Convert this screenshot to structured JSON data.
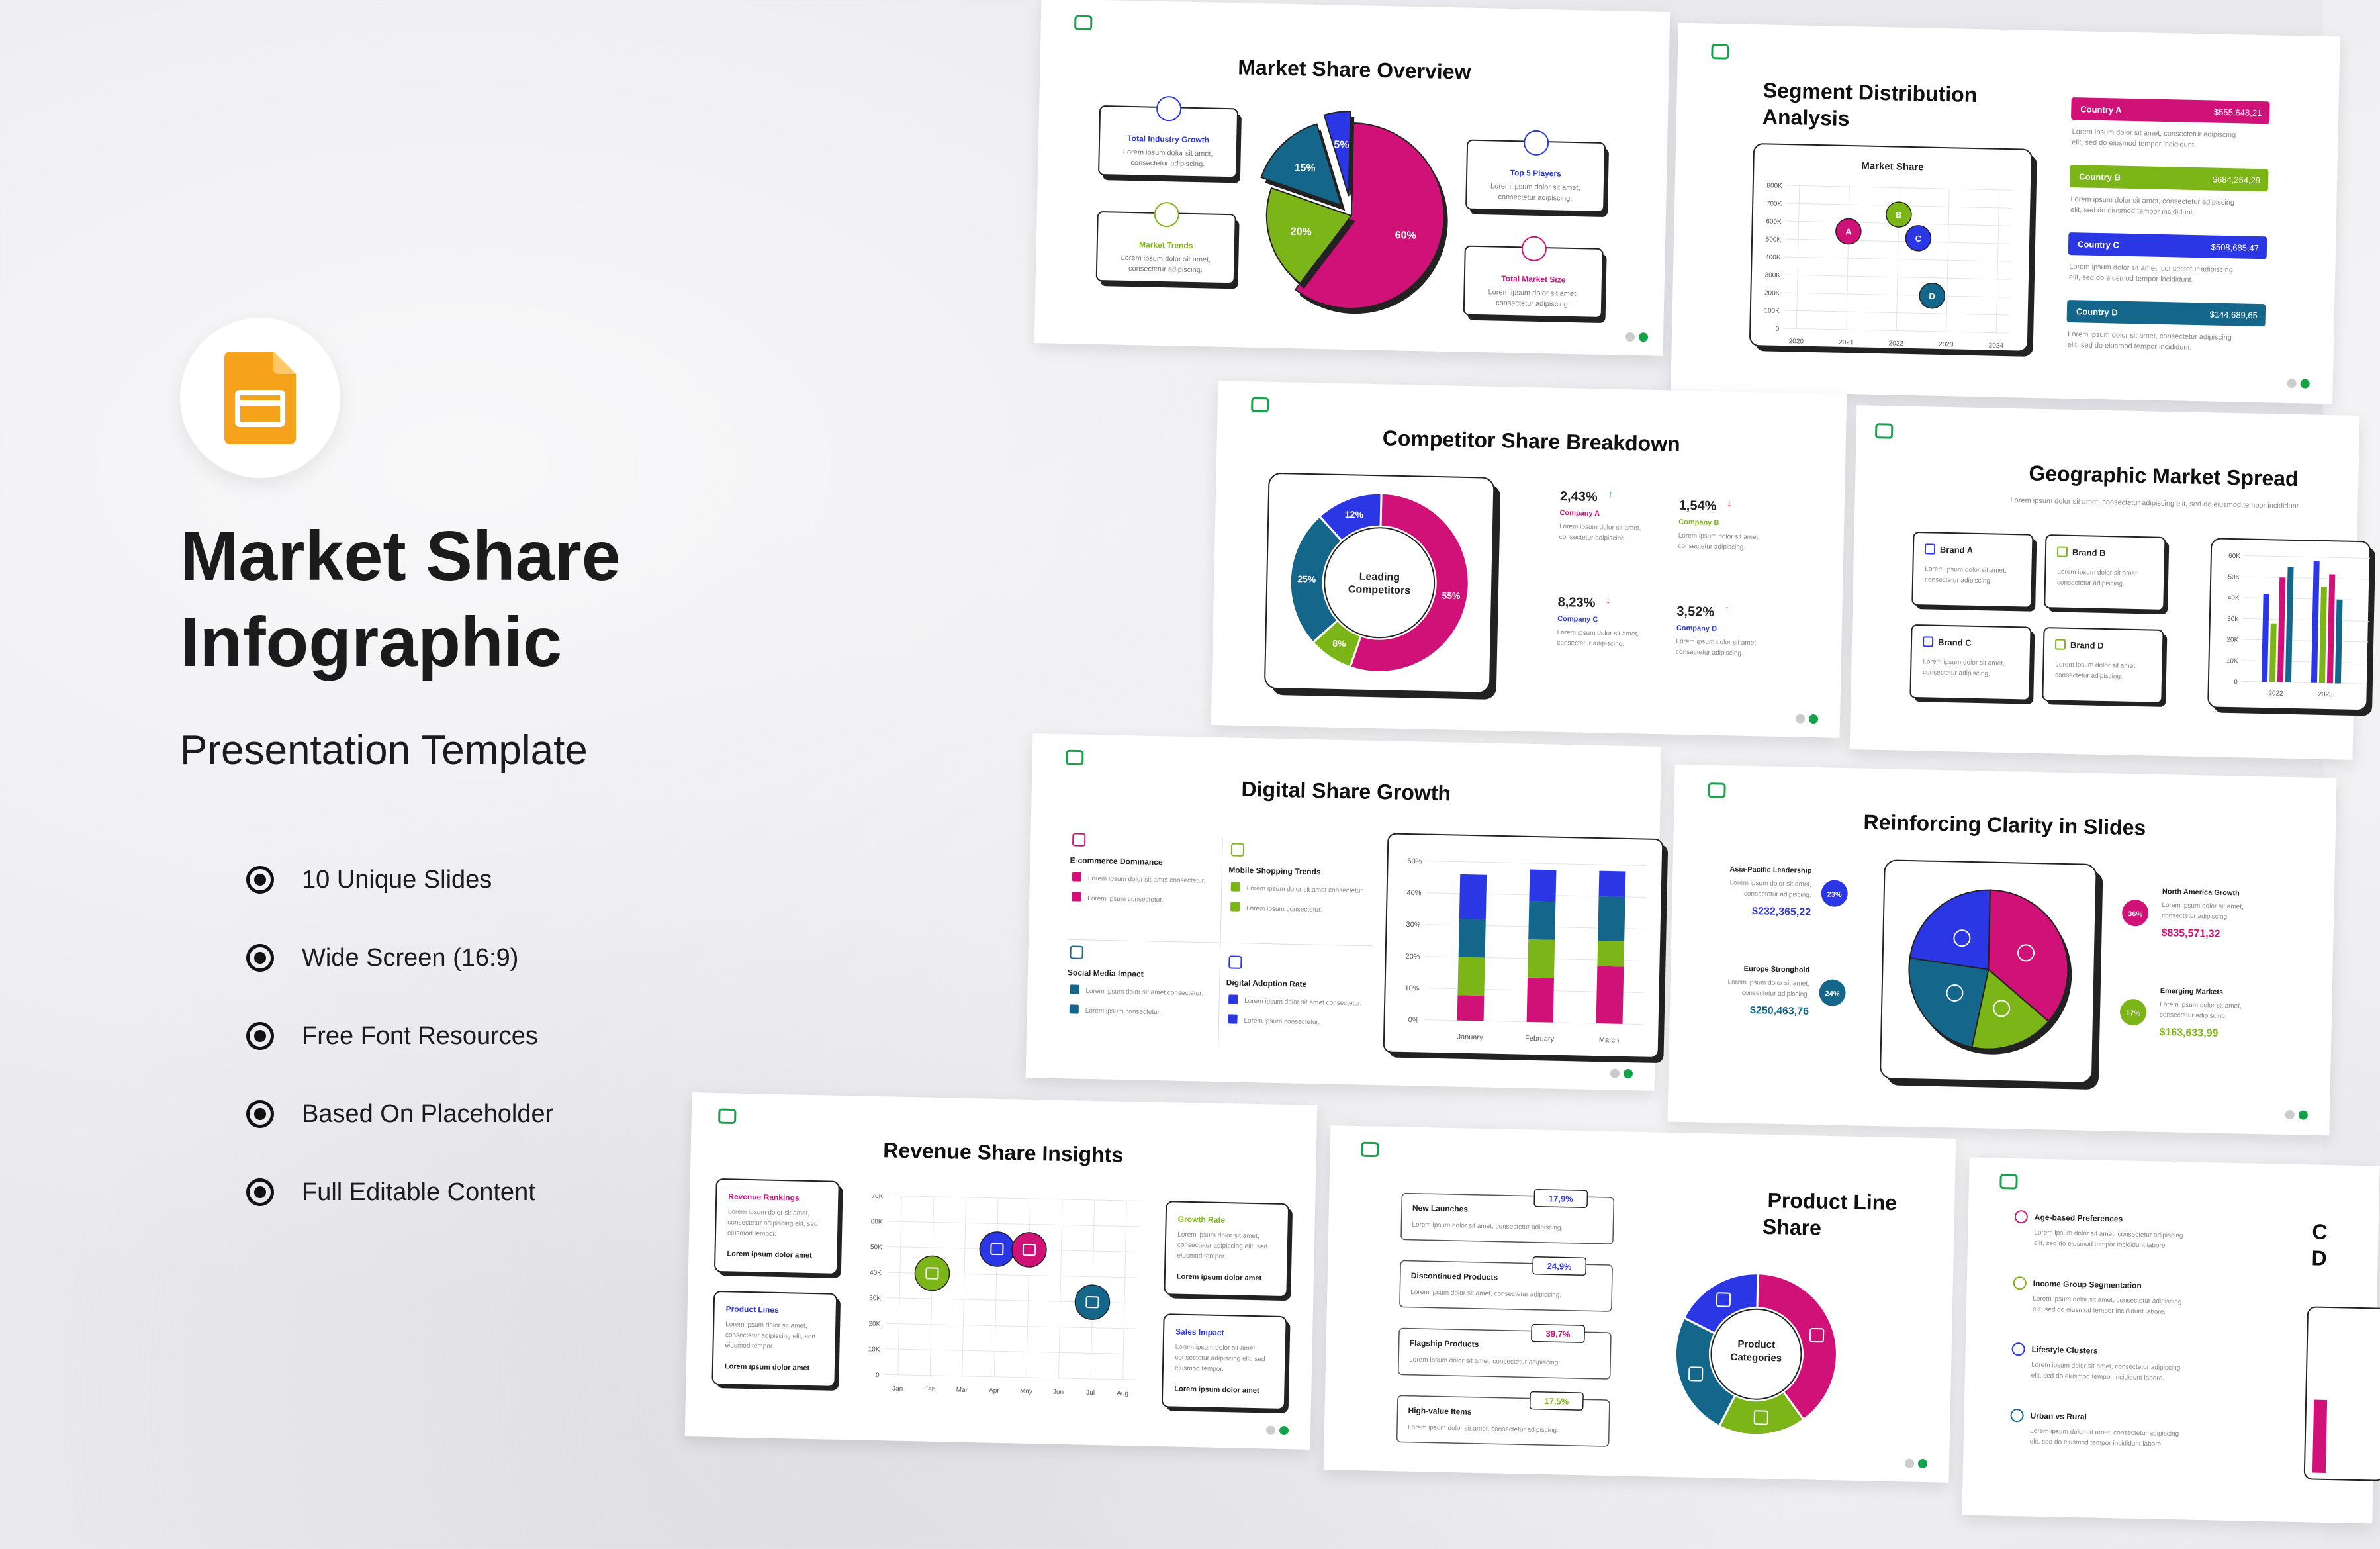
{
  "left_panel": {
    "title_line1": "Market Share",
    "title_line2": "Infographic",
    "subtitle": "Presentation Template",
    "features": [
      "10 Unique Slides",
      "Wide Screen (16:9)",
      "Free Font Resources",
      "Based On Placeholder",
      "Full Editable Content"
    ],
    "icon": "google-slides-icon",
    "icon_color": "#f7a21b"
  },
  "colors": {
    "magenta": "#d01177",
    "green": "#7cb518",
    "blue": "#2b36e4",
    "teal": "#15668b"
  },
  "lorem": {
    "short": "Lorem ipsum dolor sit amet,",
    "short2": "consectetur adipiscing.",
    "long1": "Lorem ipsum dolor sit amet, consectetur adipiscing",
    "long2": "elit, sed do eiusmod tempor incididunt.",
    "tiny": "Lorem ipsum consectetur."
  },
  "slide1": {
    "title": "Market Share Overview",
    "cards": [
      "Total Industry Growth",
      "Market Trends",
      "Top 5 Players",
      "Total Market Size"
    ],
    "slices": [
      {
        "label": "60%",
        "value": 60
      },
      {
        "label": "20%",
        "value": 20
      },
      {
        "label": "15%",
        "value": 15
      },
      {
        "label": "5%",
        "value": 5
      }
    ]
  },
  "slide2": {
    "title_line1": "Segment Distribution",
    "title_line2": "Analysis",
    "chart_title": "Market Share",
    "y_ticks": [
      "800K",
      "700K",
      "600K",
      "500K",
      "400K",
      "300K",
      "200K",
      "100K",
      "0"
    ],
    "x_ticks": [
      "2020",
      "2021",
      "2022",
      "2023",
      "2024"
    ],
    "bubbles": [
      {
        "label": "A",
        "year": 2021,
        "value": 550
      },
      {
        "label": "B",
        "year": 2022,
        "value": 650
      },
      {
        "label": "C",
        "year": 2022.4,
        "value": 520
      },
      {
        "label": "D",
        "year": 2022.7,
        "value": 200
      }
    ],
    "countries": [
      {
        "name": "Country A",
        "value": "$555,648,21"
      },
      {
        "name": "Country B",
        "value": "$684,254,29"
      },
      {
        "name": "Country C",
        "value": "$508,685,47"
      },
      {
        "name": "Country D",
        "value": "$144,689,65"
      }
    ]
  },
  "slide3": {
    "title": "Competitor Share Breakdown",
    "center_line1": "Leading",
    "center_line2": "Competitors",
    "slices": [
      {
        "label": "55%",
        "value": 55
      },
      {
        "label": "8%",
        "value": 8
      },
      {
        "label": "25%",
        "value": 25
      },
      {
        "label": "12%",
        "value": 12
      }
    ],
    "stats": [
      {
        "value": "2,43%",
        "company": "Company A",
        "trend": "up"
      },
      {
        "value": "1,54%",
        "company": "Company B",
        "trend": "down"
      },
      {
        "value": "8,23%",
        "company": "Company C",
        "trend": "down"
      },
      {
        "value": "3,52%",
        "company": "Company D",
        "trend": "up"
      }
    ]
  },
  "slide4": {
    "title": "Geographic Market Spread",
    "desc": "Lorem ipsum dolor sit amet, consectetur adipiscing elit, sed do eiusmod tempor incididunt",
    "brands": [
      "Brand A",
      "Brand B",
      "Brand C",
      "Brand D"
    ],
    "y_ticks": [
      "60K",
      "50K",
      "40K",
      "30K",
      "20K",
      "10K",
      "0"
    ],
    "x_ticks": [
      "2022",
      "2023"
    ]
  },
  "slide5": {
    "title": "Digital Share Growth",
    "blocks": [
      "E-commerce Dominance",
      "Mobile Shopping Trends",
      "Social Media Impact",
      "Digital Adoption Rate"
    ],
    "y_ticks": [
      "50%",
      "40%",
      "30%",
      "20%",
      "10%",
      "0%"
    ],
    "months": [
      "January",
      "February",
      "March"
    ]
  },
  "slide6": {
    "title": "Reinforcing Clarity in Slides",
    "regions": [
      {
        "name": "Asia-Pacific Leadership",
        "value": "$232,365,22",
        "pct": "23%"
      },
      {
        "name": "Europe Stronghold",
        "value": "$250,463,76",
        "pct": "24%"
      },
      {
        "name": "North America Growth",
        "value": "$835,571,32",
        "pct": "36%"
      },
      {
        "name": "Emerging Markets",
        "value": "$163,633,99",
        "pct": "17%"
      }
    ]
  },
  "slide7": {
    "title": "Revenue Share Insights",
    "cards": [
      "Revenue Rankings",
      "Product Lines",
      "Growth Rate",
      "Sales Impact"
    ],
    "card_footer": "Lorem ipsum dolor amet",
    "y_ticks": [
      "70K",
      "60K",
      "50K",
      "40K",
      "30K",
      "20K",
      "10K",
      "0"
    ],
    "x_ticks": [
      "Jan",
      "Feb",
      "Mar",
      "Apr",
      "May",
      "Jun",
      "Jul",
      "Aug"
    ]
  },
  "slide8": {
    "title_line1": "Product Line",
    "title_line2": "Share",
    "center_line1": "Product",
    "center_line2": "Categories",
    "rows": [
      {
        "name": "New Launches",
        "value": "17,9%"
      },
      {
        "name": "Discontinued Products",
        "value": "24,9%"
      },
      {
        "name": "Flagship Products",
        "value": "39,7%"
      },
      {
        "name": "High-value Items",
        "value": "17,5%"
      }
    ]
  },
  "slide9": {
    "items": [
      "Age-based Preferences",
      "Income Group Segmentation",
      "Lifestyle Clusters",
      "Urban vs Rural"
    ],
    "title_fragment1": "C",
    "title_fragment2": "D"
  }
}
